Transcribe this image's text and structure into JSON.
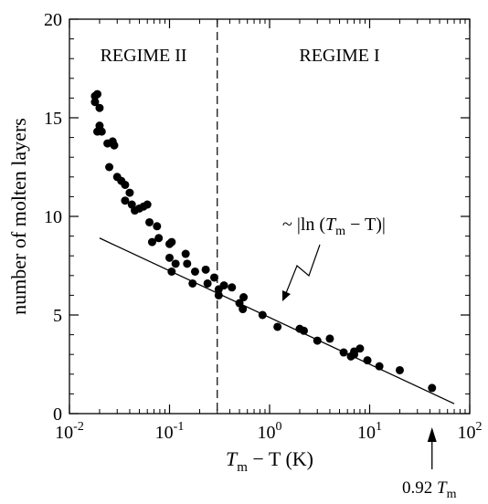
{
  "chart_data": {
    "type": "scatter",
    "title": "",
    "ylabel": "number of molten layers",
    "xlabel": {
      "main": "T",
      "sub": "m",
      "rest": " − T (K)"
    },
    "x_scale": "log",
    "xlim": [
      0.01,
      100
    ],
    "ylim": [
      0,
      20
    ],
    "x_ticks": [
      {
        "value": 0.01,
        "base": "10",
        "exp": "-2"
      },
      {
        "value": 0.1,
        "base": "10",
        "exp": "-1"
      },
      {
        "value": 1,
        "base": "10",
        "exp": "0"
      },
      {
        "value": 10,
        "base": "10",
        "exp": "1"
      },
      {
        "value": 100,
        "base": "10",
        "exp": "2"
      }
    ],
    "y_ticks": [
      0,
      5,
      10,
      15,
      20
    ],
    "grid": false,
    "regions": [
      {
        "label": "REGIME II",
        "x_center": 0.055
      },
      {
        "label": "REGIME I",
        "x_center": 5
      }
    ],
    "regime_boundary_x": 0.3,
    "fit_line": {
      "label_prefix": "~ |ln (",
      "label_main": "T",
      "label_sub": "m",
      "label_suffix": " − T)|",
      "from": [
        0.02,
        8.9
      ],
      "to": [
        70,
        0.5
      ]
    },
    "arrow_annotation": {
      "main": "0.92 ",
      "italic": "T",
      "sub": "m",
      "x": 42
    },
    "series": [
      {
        "points": [
          [
            0.018,
            16.1
          ],
          [
            0.019,
            16.2
          ],
          [
            0.018,
            15.8
          ],
          [
            0.02,
            15.5
          ],
          [
            0.02,
            14.6
          ],
          [
            0.021,
            14.3
          ],
          [
            0.019,
            14.3
          ],
          [
            0.024,
            13.7
          ],
          [
            0.027,
            13.8
          ],
          [
            0.028,
            13.6
          ],
          [
            0.025,
            12.5
          ],
          [
            0.03,
            12.0
          ],
          [
            0.033,
            11.8
          ],
          [
            0.036,
            11.6
          ],
          [
            0.04,
            11.2
          ],
          [
            0.036,
            10.8
          ],
          [
            0.042,
            10.6
          ],
          [
            0.045,
            10.3
          ],
          [
            0.05,
            10.4
          ],
          [
            0.055,
            10.5
          ],
          [
            0.06,
            10.6
          ],
          [
            0.063,
            9.7
          ],
          [
            0.075,
            9.5
          ],
          [
            0.067,
            8.7
          ],
          [
            0.078,
            8.9
          ],
          [
            0.1,
            8.6
          ],
          [
            0.105,
            8.7
          ],
          [
            0.1,
            7.9
          ],
          [
            0.115,
            7.6
          ],
          [
            0.105,
            7.2
          ],
          [
            0.145,
            8.1
          ],
          [
            0.15,
            7.6
          ],
          [
            0.18,
            7.2
          ],
          [
            0.23,
            7.3
          ],
          [
            0.28,
            6.9
          ],
          [
            0.17,
            6.6
          ],
          [
            0.24,
            6.6
          ],
          [
            0.31,
            6.3
          ],
          [
            0.35,
            6.5
          ],
          [
            0.42,
            6.4
          ],
          [
            0.31,
            6.0
          ],
          [
            0.5,
            5.6
          ],
          [
            0.55,
            5.9
          ],
          [
            0.54,
            5.3
          ],
          [
            0.85,
            5.0
          ],
          [
            1.2,
            4.4
          ],
          [
            2.0,
            4.3
          ],
          [
            2.2,
            4.2
          ],
          [
            3.0,
            3.7
          ],
          [
            4.0,
            3.8
          ],
          [
            5.5,
            3.1
          ],
          [
            6.5,
            2.9
          ],
          [
            7.0,
            3.0
          ],
          [
            8.0,
            3.3
          ],
          [
            7.0,
            3.15
          ],
          [
            9.5,
            2.7
          ],
          [
            12.5,
            2.4
          ],
          [
            20,
            2.2
          ],
          [
            42,
            1.3
          ]
        ]
      }
    ]
  }
}
